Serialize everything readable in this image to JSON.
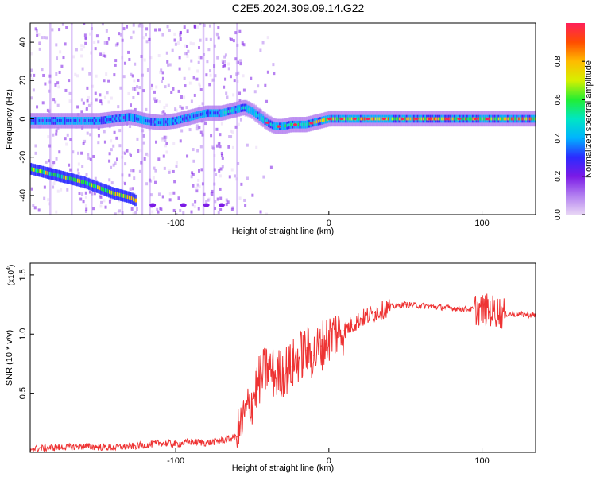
{
  "figure_title": "C2E5.2024.309.09.14.G22",
  "chart_data": [
    {
      "type": "heatmap",
      "xlabel": "Height of straight line (km)",
      "ylabel": "Frequency (Hz)",
      "xlim": [
        -195,
        135
      ],
      "ylim": [
        -50,
        50
      ],
      "xticks": [
        -100,
        0,
        100
      ],
      "yticks": [
        -40,
        -20,
        0,
        20,
        40
      ],
      "grid": false,
      "colorbar": {
        "label": "Normalized spectral amplitude",
        "range": [
          0.0,
          1.0
        ],
        "ticks": [
          0.0,
          0.2,
          0.4,
          0.6,
          0.8
        ],
        "tick_labels": [
          "0.0",
          "0.2",
          "0.4",
          "0.6",
          "0.8"
        ],
        "colors": [
          "#e8d6f5",
          "#b27ff0",
          "#7b1ae6",
          "#2b2bff",
          "#00b3ff",
          "#00e6c3",
          "#22ee33",
          "#d6f000",
          "#ffbb00",
          "#ff4d00",
          "#ff1f5a"
        ]
      },
      "ridge": {
        "x": [
          -195,
          -180,
          -170,
          -160,
          -150,
          -140,
          -130,
          -120,
          -110,
          -100,
          -90,
          -80,
          -70,
          -60,
          -55,
          -50,
          -45,
          -40,
          -35,
          -30,
          -25,
          -20,
          -15,
          -10,
          -5,
          0,
          10,
          20,
          40,
          60,
          80,
          100,
          110,
          120,
          135
        ],
        "y": [
          -1,
          -1,
          -1,
          -1,
          -1,
          0,
          1,
          -1,
          -2,
          -1,
          1,
          3,
          3,
          5,
          6,
          4,
          1,
          -2,
          -4,
          -4,
          -3,
          -3,
          -3,
          -2,
          -1,
          0,
          0,
          0,
          0,
          0,
          0,
          0,
          0,
          0,
          0
        ]
      },
      "lower_branch": {
        "x": [
          -195,
          -185,
          -175,
          -165,
          -160,
          -150,
          -140,
          -130,
          -125
        ],
        "y": [
          -26,
          -28,
          -30,
          -32,
          -33,
          -36,
          -39,
          -41,
          -43
        ]
      }
    },
    {
      "type": "line",
      "xlabel": "Height of straight line (km)",
      "ylabel": "SNR (10 * v/v)",
      "y_multiplier": "(x10",
      "y_multiplier_exp": "4",
      "y_multiplier_close": ")",
      "xlim": [
        -195,
        135
      ],
      "ylim": [
        0.0,
        1.6
      ],
      "xticks": [
        -100,
        0,
        100
      ],
      "yticks": [
        0.5,
        1.0,
        1.5
      ],
      "ytick_labels": [
        "0.5",
        "1.0",
        "1.5"
      ],
      "color": "#ee3333",
      "series": [
        {
          "x": [
            -195,
            -180,
            -160,
            -140,
            -130,
            -120,
            -110,
            -100,
            -90,
            -80,
            -70,
            -60,
            -55,
            -50,
            -45,
            -40,
            -35,
            -30,
            -25,
            -20,
            -15,
            -10,
            -5,
            0,
            5,
            10,
            15,
            20,
            30,
            40,
            50,
            60,
            70,
            80,
            90,
            100,
            105,
            110,
            115,
            120,
            135
          ],
          "values": [
            0.03,
            0.04,
            0.05,
            0.04,
            0.05,
            0.06,
            0.08,
            0.07,
            0.09,
            0.08,
            0.1,
            0.13,
            0.3,
            0.45,
            0.62,
            0.72,
            0.65,
            0.68,
            0.72,
            0.8,
            0.86,
            0.82,
            0.9,
            0.97,
            1.02,
            1.03,
            1.08,
            1.12,
            1.18,
            1.23,
            1.25,
            1.24,
            1.23,
            1.22,
            1.21,
            1.21,
            1.2,
            1.19,
            1.17,
            1.17,
            1.16
          ]
        }
      ]
    }
  ]
}
